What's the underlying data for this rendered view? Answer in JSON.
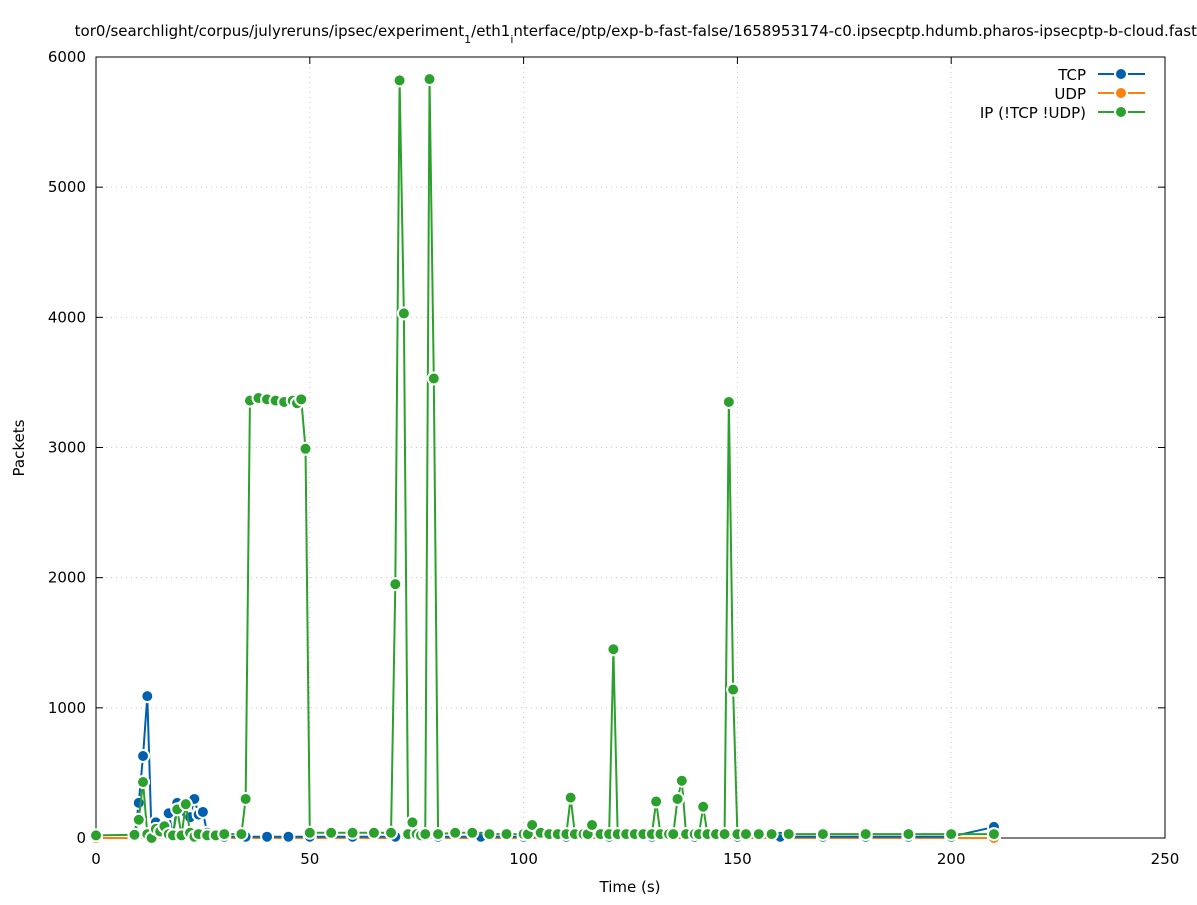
{
  "chart_data": {
    "type": "line",
    "title": "tor0/searchlight/corpus/julyreruns/ipsec/experiment",
    "title_sub1": "1",
    "title_mid": "/eth1",
    "title_sub2": "i",
    "title_end": "nterface/ptp/exp-b-fast-false/1658953174-c0.ipsecptp.hdumb.pharos-ipsecptp-b-cloud.fast",
    "xlabel": "Time (s)",
    "ylabel": "Packets",
    "xlim": [
      0,
      250
    ],
    "ylim": [
      0,
      6000
    ],
    "xticks": [
      0,
      50,
      100,
      150,
      200,
      250
    ],
    "xtick_labels": [
      "0",
      "50",
      "100",
      "150",
      "200",
      "250"
    ],
    "yticks": [
      0,
      1000,
      2000,
      3000,
      4000,
      5000,
      6000
    ],
    "ytick_labels": [
      "0",
      "1000",
      "2000",
      "3000",
      "4000",
      "5000",
      "6000"
    ],
    "grid": true,
    "legend_position": "top-right",
    "series": [
      {
        "name": "TCP",
        "color": "#0060ad",
        "x": [
          9,
          10,
          11,
          12,
          13,
          14,
          15,
          16,
          17,
          18,
          19,
          20,
          21,
          22,
          23,
          24,
          25,
          26,
          28,
          30,
          35,
          40,
          45,
          50,
          60,
          70,
          80,
          90,
          100,
          110,
          120,
          130,
          140,
          150,
          160,
          170,
          180,
          190,
          200,
          210
        ],
        "y": [
          10,
          270,
          630,
          1090,
          10,
          120,
          60,
          40,
          190,
          20,
          270,
          230,
          200,
          160,
          300,
          180,
          200,
          40,
          20,
          10,
          10,
          10,
          10,
          10,
          10,
          10,
          10,
          10,
          10,
          10,
          10,
          10,
          10,
          10,
          10,
          10,
          10,
          10,
          10,
          85
        ]
      },
      {
        "name": "UDP",
        "color": "#ff7f0e",
        "x": [
          0,
          210
        ],
        "y": [
          0,
          0
        ]
      },
      {
        "name": "IP (!TCP  !UDP)",
        "color": "#2ca02c",
        "x": [
          0,
          9,
          10,
          11,
          12,
          13,
          14,
          15,
          16,
          17,
          18,
          19,
          20,
          21,
          22,
          23,
          24,
          26,
          28,
          30,
          34,
          35,
          36,
          38,
          40,
          42,
          44,
          46,
          47,
          48,
          49,
          50,
          55,
          60,
          65,
          69,
          70,
          71,
          72,
          73,
          74,
          75,
          76,
          77,
          78,
          79,
          80,
          84,
          88,
          92,
          96,
          100,
          101,
          102,
          104,
          106,
          108,
          110,
          111,
          112,
          114,
          115,
          116,
          118,
          120,
          121,
          122,
          124,
          126,
          128,
          130,
          131,
          132,
          134,
          135,
          136,
          137,
          138,
          140,
          141,
          142,
          143,
          145,
          147,
          148,
          149,
          150,
          152,
          155,
          158,
          162,
          170,
          180,
          190,
          200,
          210
        ],
        "y": [
          20,
          25,
          140,
          430,
          30,
          0,
          70,
          50,
          90,
          30,
          20,
          220,
          20,
          260,
          40,
          10,
          30,
          20,
          20,
          30,
          30,
          300,
          3360,
          3380,
          3370,
          3360,
          3350,
          3360,
          3340,
          3370,
          2990,
          40,
          40,
          40,
          40,
          40,
          1950,
          5820,
          4030,
          30,
          120,
          30,
          20,
          30,
          5830,
          3530,
          30,
          40,
          40,
          30,
          30,
          30,
          30,
          100,
          40,
          30,
          30,
          30,
          310,
          30,
          30,
          30,
          100,
          30,
          30,
          1450,
          30,
          30,
          30,
          30,
          30,
          280,
          30,
          30,
          30,
          300,
          440,
          30,
          30,
          30,
          240,
          30,
          30,
          30,
          3350,
          1140,
          30,
          30,
          30,
          30,
          30,
          30,
          30,
          30,
          30,
          30
        ]
      }
    ]
  }
}
